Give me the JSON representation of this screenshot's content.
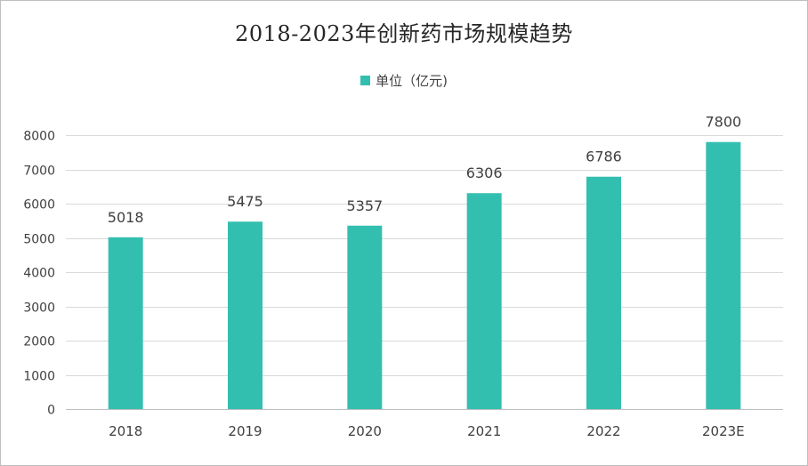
{
  "colors": {
    "bar": "#33bfb0",
    "grid": "#d9d9d9",
    "axis": "#bfbfbf",
    "text": "#404040",
    "label": "#404040"
  },
  "chart_data": {
    "type": "bar",
    "title": "2018-2023年创新药市场规模趋势",
    "legend": {
      "position": "top",
      "entries": [
        "单位（亿元)"
      ]
    },
    "categories": [
      "2018",
      "2019",
      "2020",
      "2021",
      "2022",
      "2023E"
    ],
    "series": [
      {
        "name": "单位（亿元)",
        "values": [
          5018,
          5475,
          5357,
          6306,
          6786,
          7800
        ]
      }
    ],
    "ylim": [
      0,
      8000
    ],
    "yticks": [
      0,
      1000,
      2000,
      3000,
      4000,
      5000,
      6000,
      7000,
      8000
    ],
    "grid": true,
    "data_labels": true
  }
}
